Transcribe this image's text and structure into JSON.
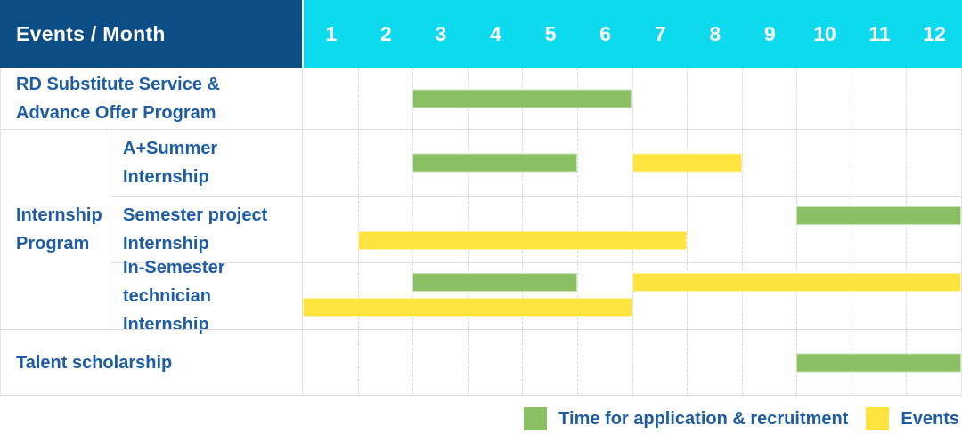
{
  "colors": {
    "header_bg": "#0c4d85",
    "months_bg": "#0edaee",
    "label_text": "#1e5ca3",
    "grid_line": "#d9d9d9",
    "recruitment_green": "#8bc164",
    "events_yellow": "#ffe33e"
  },
  "header": {
    "label": "Events / Month",
    "months": [
      "1",
      "2",
      "3",
      "4",
      "5",
      "6",
      "7",
      "8",
      "9",
      "10",
      "11",
      "12"
    ]
  },
  "labels": {
    "rd": "RD Substitute Service &\nAdvance Offer Program",
    "group_internship": "Internship\nProgram",
    "a_summer": "A+Summer\nInternship",
    "semester_project": "Semester project\nInternship",
    "in_semester": "In-Semester\ntechnician Internship",
    "talent": "Talent scholarship"
  },
  "legend": {
    "items": [
      {
        "label": "Time for application & recruitment",
        "color": "#8bc164"
      },
      {
        "label": "Events",
        "color": "#ffe33e"
      }
    ]
  },
  "chart_data": {
    "type": "bar",
    "subtype": "gantt-timeline-table",
    "title": "Events / Month",
    "x_axis": {
      "label": "Month",
      "ticks": [
        1,
        2,
        3,
        4,
        5,
        6,
        7,
        8,
        9,
        10,
        11,
        12
      ],
      "range": [
        1,
        12
      ]
    },
    "grid": true,
    "legend_position": "bottom-right",
    "series": [
      {
        "name": "Time for application & recruitment",
        "color": "#8bc164"
      },
      {
        "name": "Events",
        "color": "#ffe33e"
      }
    ],
    "rows": [
      {
        "label": "RD Substitute Service & Advance Offer Program",
        "group": null,
        "bars": [
          {
            "series": 0,
            "start_month": 3,
            "end_month": 6,
            "lane": "single"
          }
        ]
      },
      {
        "label": "A+Summer Internship",
        "group": "Internship Program",
        "bars": [
          {
            "series": 0,
            "start_month": 3,
            "end_month": 5,
            "lane": "single"
          },
          {
            "series": 1,
            "start_month": 7,
            "end_month": 8,
            "lane": "single"
          }
        ]
      },
      {
        "label": "Semester project Internship",
        "group": "Internship Program",
        "bars": [
          {
            "series": 0,
            "start_month": 10,
            "end_month": 12,
            "lane": "top"
          },
          {
            "series": 1,
            "start_month": 2,
            "end_month": 7,
            "lane": "bottom"
          }
        ]
      },
      {
        "label": "In-Semester technician Internship",
        "group": "Internship Program",
        "bars": [
          {
            "series": 0,
            "start_month": 3,
            "end_month": 5,
            "lane": "top"
          },
          {
            "series": 1,
            "start_month": 7,
            "end_month": 12,
            "lane": "top"
          },
          {
            "series": 1,
            "start_month": 1,
            "end_month": 6,
            "lane": "bottom"
          }
        ]
      },
      {
        "label": "Talent scholarship",
        "group": null,
        "bars": [
          {
            "series": 0,
            "start_month": 10,
            "end_month": 12,
            "lane": "single"
          }
        ]
      }
    ]
  }
}
